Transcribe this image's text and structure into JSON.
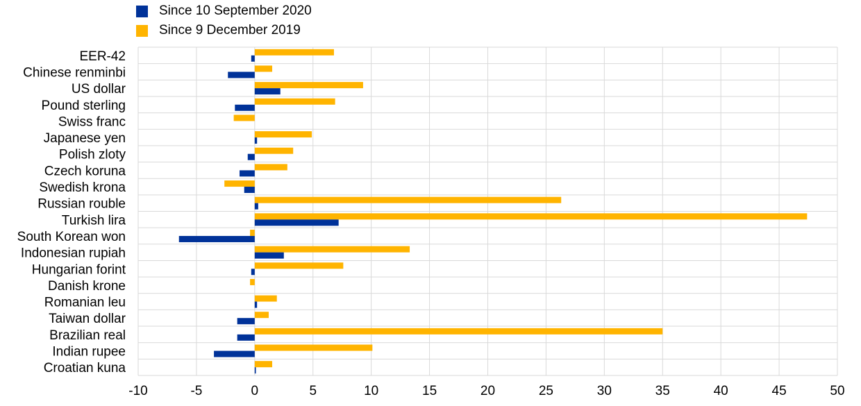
{
  "colors": {
    "series_a": "#003299",
    "series_b": "#FFB400",
    "grid": "#d9d9d9",
    "text": "#000000"
  },
  "chart_data": {
    "type": "bar",
    "orientation": "horizontal",
    "grid": true,
    "legend_position": "top-left",
    "xlim": [
      -10,
      50
    ],
    "x_ticks": [
      -10,
      -5,
      0,
      5,
      10,
      15,
      20,
      25,
      30,
      35,
      40,
      45,
      50
    ],
    "categories": [
      "EER-42",
      "Chinese renminbi",
      "US dollar",
      "Pound sterling",
      "Swiss franc",
      "Japanese yen",
      "Polish zloty",
      "Czech koruna",
      "Swedish krona",
      "Russian rouble",
      "Turkish lira",
      "South Korean won",
      "Indonesian rupiah",
      "Hungarian forint",
      "Danish krone",
      "Romanian leu",
      "Taiwan dollar",
      "Brazilian real",
      "Indian rupee",
      "Croatian kuna"
    ],
    "series": [
      {
        "name": "Since 10 September 2020",
        "color": "#003299",
        "values": [
          -0.3,
          -2.3,
          2.2,
          -1.7,
          0.0,
          0.2,
          -0.6,
          -1.3,
          -0.9,
          0.3,
          7.2,
          -6.5,
          2.5,
          -0.3,
          0.0,
          0.2,
          -1.5,
          -1.5,
          -3.5,
          0.1
        ]
      },
      {
        "name": "Since 9 December 2019",
        "color": "#FFB400",
        "values": [
          6.8,
          1.5,
          9.3,
          6.9,
          -1.8,
          4.9,
          3.3,
          2.8,
          -2.6,
          26.3,
          47.4,
          -0.4,
          13.3,
          7.6,
          -0.4,
          1.9,
          1.2,
          35.0,
          10.1,
          1.5
        ]
      }
    ]
  }
}
